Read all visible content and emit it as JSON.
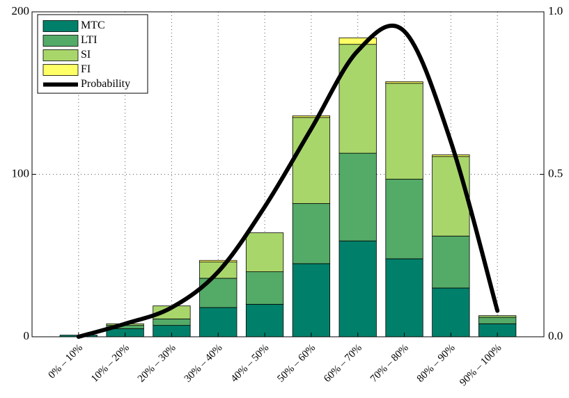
{
  "chart_data": {
    "type": "bar",
    "stacked": true,
    "categories": [
      "0% – 10%",
      "10% – 20%",
      "20% – 30%",
      "30% – 40%",
      "40% – 50%",
      "50% – 60%",
      "60% – 70%",
      "70% – 80%",
      "80% – 90%",
      "90% – 100%"
    ],
    "series": [
      {
        "name": "MTC",
        "color": "#00806a",
        "values": [
          1,
          5,
          7,
          18,
          20,
          45,
          59,
          48,
          30,
          8
        ]
      },
      {
        "name": "LTI",
        "color": "#54aa67",
        "values": [
          0,
          2,
          4,
          18,
          20,
          37,
          54,
          49,
          32,
          4
        ]
      },
      {
        "name": "SI",
        "color": "#a9d66b",
        "values": [
          0,
          1,
          8,
          10,
          24,
          53,
          67,
          59,
          49,
          1
        ]
      },
      {
        "name": "FI",
        "color": "#ffff66",
        "values": [
          0,
          0,
          0,
          1,
          0,
          1,
          4,
          1,
          1,
          0
        ]
      },
      {
        "name": "Probability",
        "type": "line",
        "axis": "y2",
        "color": "#000000",
        "values": [
          0.0,
          0.04,
          0.09,
          0.2,
          0.4,
          0.64,
          0.88,
          0.94,
          0.6,
          0.08
        ]
      }
    ],
    "ylim": [
      0,
      200
    ],
    "yticks": [
      0,
      100,
      200
    ],
    "y2lim": [
      0,
      1
    ],
    "y2ticks": [
      {
        "value": 0,
        "label": "0.0"
      },
      0.5,
      {
        "value": 1,
        "label": "1.0"
      }
    ],
    "grid": true,
    "legend": "upper left"
  }
}
